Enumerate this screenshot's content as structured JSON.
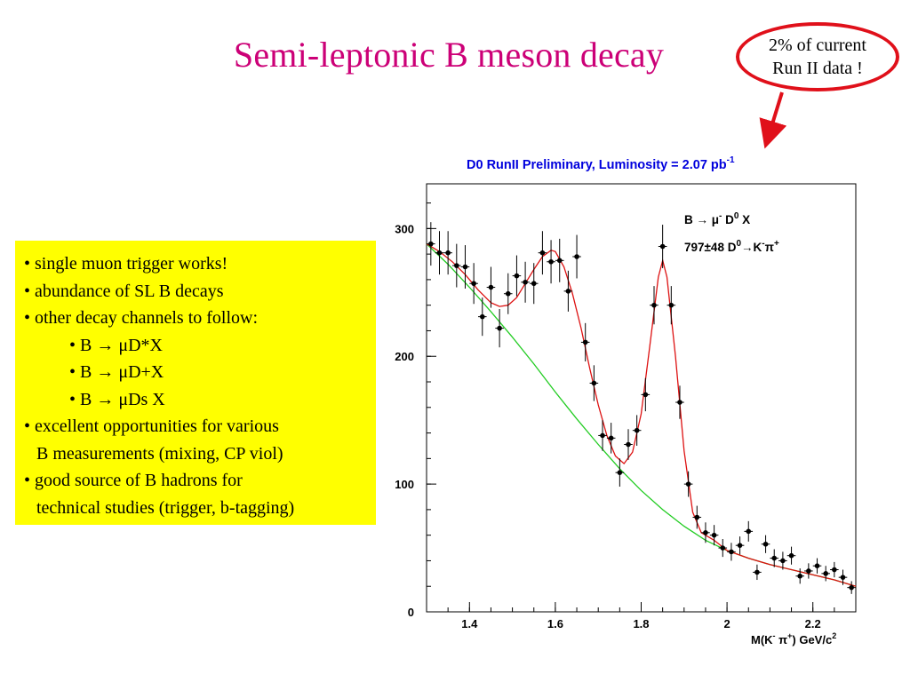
{
  "slide": {
    "title": "Semi-leptonic B meson decay",
    "callout": {
      "line1": "2% of current",
      "line2": "Run II data !"
    },
    "bullets": [
      {
        "text": "• single muon trigger works!",
        "kind": "main"
      },
      {
        "text": "• abundance of SL B decays",
        "kind": "main"
      },
      {
        "text": "• other decay channels to follow:",
        "kind": "main"
      },
      {
        "text": "• B → μD*X",
        "kind": "sub"
      },
      {
        "text": "• B → μD+X",
        "kind": "sub"
      },
      {
        "text": "• B → μDs X",
        "kind": "sub"
      },
      {
        "text": "• excellent opportunities for various",
        "kind": "main"
      },
      {
        "text": "B measurements (mixing, CP viol)",
        "kind": "cont"
      },
      {
        "text": "• good source of B hadrons for",
        "kind": "main"
      },
      {
        "text": "technical studies (trigger, b-tagging)",
        "kind": "cont"
      }
    ]
  },
  "colors": {
    "title": "#cc0077",
    "chart_header": "#0000dd",
    "highlight_box": "#ffff00",
    "callout_ring": "#e0101a",
    "fit_total": "#dd1111",
    "fit_background": "#22cc22",
    "data_points": "#000000"
  },
  "chart_data": {
    "type": "scatter",
    "title": "D0 RunII  Preliminary, Luminosity = 2.07 pb",
    "title_superscript": "-1",
    "xlabel": "M(K",
    "xlabel_sup1": "-",
    "xlabel_mid": " π",
    "xlabel_sup2": "+",
    "xlabel_end": ") GeV/c",
    "xlabel_sup3": "2",
    "xlim": [
      1.3,
      2.3
    ],
    "ylim": [
      0,
      335
    ],
    "x_ticks": [
      {
        "value": 1.4,
        "label": "1.4"
      },
      {
        "value": 1.6,
        "label": "1.6"
      },
      {
        "value": 1.8,
        "label": "1.8"
      },
      {
        "value": 2.0,
        "label": "2"
      },
      {
        "value": 2.2,
        "label": "2.2"
      }
    ],
    "y_ticks": [
      {
        "value": 0,
        "label": "0"
      },
      {
        "value": 100,
        "label": "100"
      },
      {
        "value": 200,
        "label": "200"
      },
      {
        "value": 300,
        "label": "300"
      }
    ],
    "grid": false,
    "legend": {
      "line1": "B → μ",
      "line1_sup1": "-",
      "line1_mid": " D",
      "line1_sup2": "0",
      "line1_end": " X",
      "line2": "797±48  D",
      "line2_sup1": "0",
      "line2_mid": "→K",
      "line2_sup2": "-",
      "line2_mid2": "π",
      "line2_sup3": "+",
      "placement": "top-right"
    },
    "series": [
      {
        "type": "scatter-errorbar",
        "x": [
          1.31,
          1.33,
          1.35,
          1.37,
          1.39,
          1.41,
          1.43,
          1.45,
          1.47,
          1.49,
          1.51,
          1.53,
          1.55,
          1.57,
          1.59,
          1.61,
          1.63,
          1.65,
          1.67,
          1.69,
          1.71,
          1.73,
          1.75,
          1.77,
          1.79,
          1.81,
          1.83,
          1.85,
          1.87,
          1.89,
          1.91,
          1.93,
          1.95,
          1.97,
          1.99,
          2.01,
          2.03,
          2.05,
          2.07,
          2.09,
          2.11,
          2.13,
          2.15,
          2.17,
          2.19,
          2.21,
          2.23,
          2.25,
          2.27,
          2.29
        ],
        "y": [
          288,
          281,
          281,
          271,
          270,
          257,
          231,
          254,
          222,
          249,
          263,
          258,
          257,
          281,
          274,
          275,
          251,
          278,
          211,
          179,
          138,
          136,
          109,
          131,
          142,
          170,
          240,
          286,
          240,
          164,
          100,
          74,
          62,
          60,
          50,
          47,
          52,
          63,
          31,
          53,
          42,
          40,
          44,
          28,
          32,
          36,
          30,
          33,
          27,
          19
        ],
        "yerr": [
          17,
          17,
          17,
          17,
          17,
          16,
          15,
          16,
          15,
          16,
          16,
          16,
          16,
          17,
          17,
          17,
          16,
          17,
          15,
          14,
          12,
          12,
          11,
          12,
          12,
          13,
          15,
          17,
          15,
          13,
          10,
          9,
          8,
          8,
          7,
          7,
          7,
          8,
          6,
          7,
          7,
          7,
          7,
          6,
          6,
          6,
          6,
          6,
          6,
          5
        ]
      },
      {
        "type": "line",
        "name": "",
        "x": [
          1.3,
          1.35,
          1.4,
          1.45,
          1.5,
          1.55,
          1.6,
          1.65,
          1.7,
          1.75,
          1.8,
          1.85,
          1.9,
          1.95,
          2.0,
          2.05,
          2.1,
          2.15,
          2.2,
          2.25,
          2.3
        ],
        "y": [
          288,
          272,
          254,
          235,
          215,
          194,
          172,
          151,
          131,
          112,
          95,
          80,
          67,
          56,
          48,
          42,
          37,
          33,
          29,
          25,
          20
        ]
      },
      {
        "type": "line",
        "name": "",
        "x": [
          1.3,
          1.33,
          1.36,
          1.39,
          1.42,
          1.45,
          1.47,
          1.49,
          1.51,
          1.53,
          1.55,
          1.57,
          1.59,
          1.6,
          1.62,
          1.64,
          1.66,
          1.68,
          1.7,
          1.72,
          1.74,
          1.76,
          1.78,
          1.8,
          1.82,
          1.84,
          1.85,
          1.86,
          1.88,
          1.9,
          1.92,
          1.94,
          1.97,
          2.0,
          2.05,
          2.1,
          2.15,
          2.2,
          2.25,
          2.3
        ],
        "y": [
          288,
          282,
          274,
          264,
          252,
          242,
          239,
          240,
          246,
          257,
          268,
          278,
          283,
          282,
          270,
          249,
          222,
          191,
          162,
          138,
          122,
          116,
          125,
          155,
          208,
          262,
          275,
          262,
          200,
          126,
          78,
          62,
          56,
          48,
          42,
          37,
          33,
          29,
          25,
          20
        ]
      }
    ]
  }
}
